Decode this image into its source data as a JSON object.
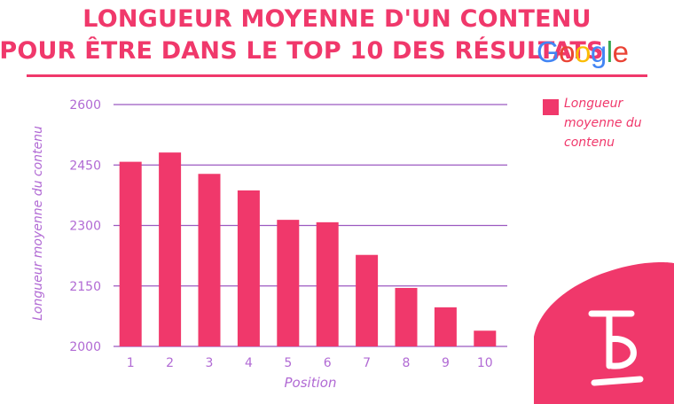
{
  "header": {
    "title_line1": "LONGUEUR MOYENNE D'UN CONTENU",
    "title_line2": "POUR ÊTRE DANS LE TOP 10 DES RÉSULTATS",
    "google_logo": {
      "letters": [
        "G",
        "o",
        "o",
        "g",
        "l",
        "e"
      ],
      "colors": [
        "#4285F4",
        "#EA4335",
        "#FBBC05",
        "#4285F4",
        "#34A853",
        "#EA4335"
      ]
    }
  },
  "colors": {
    "accent": "#f0386b",
    "axis_text": "#b16ad4",
    "grid": "#9b59c0"
  },
  "chart_data": {
    "type": "bar",
    "categories": [
      "1",
      "2",
      "3",
      "4",
      "5",
      "6",
      "7",
      "8",
      "9",
      "10"
    ],
    "series": [
      {
        "name": "Longueur moyenne du contenu",
        "values": [
          2458,
          2481,
          2428,
          2387,
          2314,
          2308,
          2227,
          2145,
          2097,
          2039
        ]
      }
    ],
    "xlabel": "Position",
    "ylabel": "Longueur moyenne du contenu",
    "ylim": [
      2000,
      2600
    ],
    "yticks": [
      2000,
      2150,
      2300,
      2450,
      2600
    ],
    "grid": true,
    "legend": "right"
  },
  "legend": {
    "label": "Longueur moyenne du contenu"
  },
  "logo": {
    "icon": "brand-b-icon"
  }
}
